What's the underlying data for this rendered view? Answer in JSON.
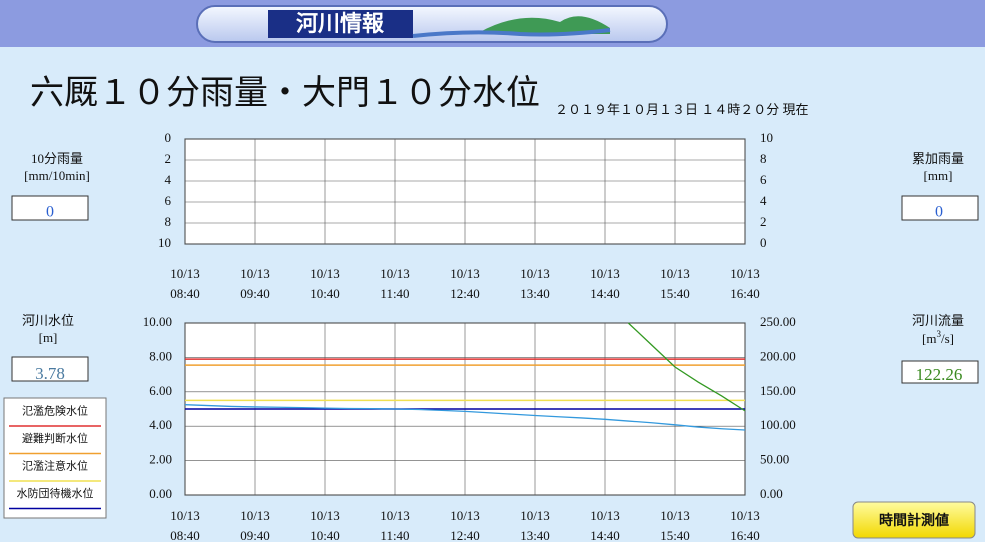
{
  "header": {
    "title": "河川情報"
  },
  "title": "六厩１０分雨量・大門１０分水位",
  "timestamp": "２０１９年１０月１３日 １４時２０分 現在",
  "panels": {
    "rain_10min": {
      "label": "10分雨量",
      "unit": "[mm/10min]",
      "value": 0
    },
    "rain_total": {
      "label": "累加雨量",
      "unit": "[mm]",
      "value": 0
    },
    "level": {
      "label": "河川水位",
      "unit": "[m]",
      "value": 3.78
    },
    "flow": {
      "label": "河川流量",
      "unit": [
        "[m",
        "3",
        "/s]"
      ],
      "value": 122.26
    }
  },
  "button": "時間計測値",
  "chart_data": [
    {
      "type": "bar",
      "x_labels": [
        [
          "10/13",
          "08:40"
        ],
        [
          "10/13",
          "09:40"
        ],
        [
          "10/13",
          "10:40"
        ],
        [
          "10/13",
          "11:40"
        ],
        [
          "10/13",
          "12:40"
        ],
        [
          "10/13",
          "13:40"
        ],
        [
          "10/13",
          "14:40"
        ],
        [
          "10/13",
          "15:40"
        ],
        [
          "10/13",
          "16:40"
        ]
      ],
      "ylim": [
        10,
        0
      ],
      "yticks": [
        0,
        2,
        4,
        6,
        8,
        10
      ],
      "y2lim": [
        0,
        10
      ],
      "y2ticks": [
        10,
        8,
        6,
        4,
        2,
        0
      ],
      "grid": true
    },
    {
      "type": "line",
      "x_labels": [
        [
          "10/13",
          "08:40"
        ],
        [
          "10/13",
          "09:40"
        ],
        [
          "10/13",
          "10:40"
        ],
        [
          "10/13",
          "11:40"
        ],
        [
          "10/13",
          "12:40"
        ],
        [
          "10/13",
          "13:40"
        ],
        [
          "10/13",
          "14:40"
        ],
        [
          "10/13",
          "15:40"
        ],
        [
          "10/13",
          "16:40"
        ]
      ],
      "x": [
        "08:40",
        "09:00",
        "09:20",
        "09:40",
        "10:00",
        "10:20",
        "10:40",
        "11:00",
        "11:20",
        "11:40",
        "12:00",
        "12:20",
        "12:40",
        "13:00",
        "13:20",
        "13:40",
        "14:00",
        "14:20",
        "14:40",
        "15:00",
        "15:20",
        "15:40",
        "16:00",
        "16:20",
        "16:40"
      ],
      "ylim": [
        0,
        10
      ],
      "yticks": [
        {
          "value": 10,
          "label": "10.00"
        },
        {
          "value": 8,
          "label": "8.00"
        },
        {
          "value": 6,
          "label": "6.00"
        },
        {
          "value": 4,
          "label": "4.00"
        },
        {
          "value": 2,
          "label": "2.00"
        },
        {
          "value": 0,
          "label": "0.00"
        }
      ],
      "y2lim": [
        0,
        250
      ],
      "y2ticks": [
        {
          "value": 250,
          "label": "250.00"
        },
        {
          "value": 200,
          "label": "200.00"
        },
        {
          "value": 150,
          "label": "150.00"
        },
        {
          "value": 100,
          "label": "100.00"
        },
        {
          "value": 50,
          "label": "50.00"
        },
        {
          "value": 0,
          "label": "0.00"
        }
      ],
      "grid": true,
      "thresholds": [
        {
          "name": "氾濫危険水位",
          "color": "#e03030",
          "value": 7.9
        },
        {
          "name": "避難判断水位",
          "color": "#f0a030",
          "value": 7.55
        },
        {
          "name": "氾濫注意水位",
          "color": "#f0e050",
          "value": 5.5
        },
        {
          "name": "水防団待機水位",
          "color": "#0000a0",
          "value": 5.0
        }
      ],
      "series": [
        {
          "color": "#3399dd",
          "axis": "y",
          "values": [
            5.25,
            5.2,
            5.15,
            5.12,
            5.1,
            5.08,
            5.05,
            5.03,
            5.02,
            5.0,
            4.97,
            4.92,
            4.86,
            4.78,
            4.7,
            4.62,
            4.55,
            4.48,
            4.4,
            4.3,
            4.2,
            4.08,
            3.95,
            3.85,
            3.78
          ]
        },
        {
          "color": "#339922",
          "axis": "y2",
          "values": [
            null,
            null,
            null,
            null,
            null,
            null,
            null,
            null,
            null,
            null,
            null,
            null,
            null,
            null,
            null,
            null,
            null,
            null,
            null,
            250,
            218,
            186,
            164,
            144,
            122.26
          ]
        }
      ]
    }
  ]
}
